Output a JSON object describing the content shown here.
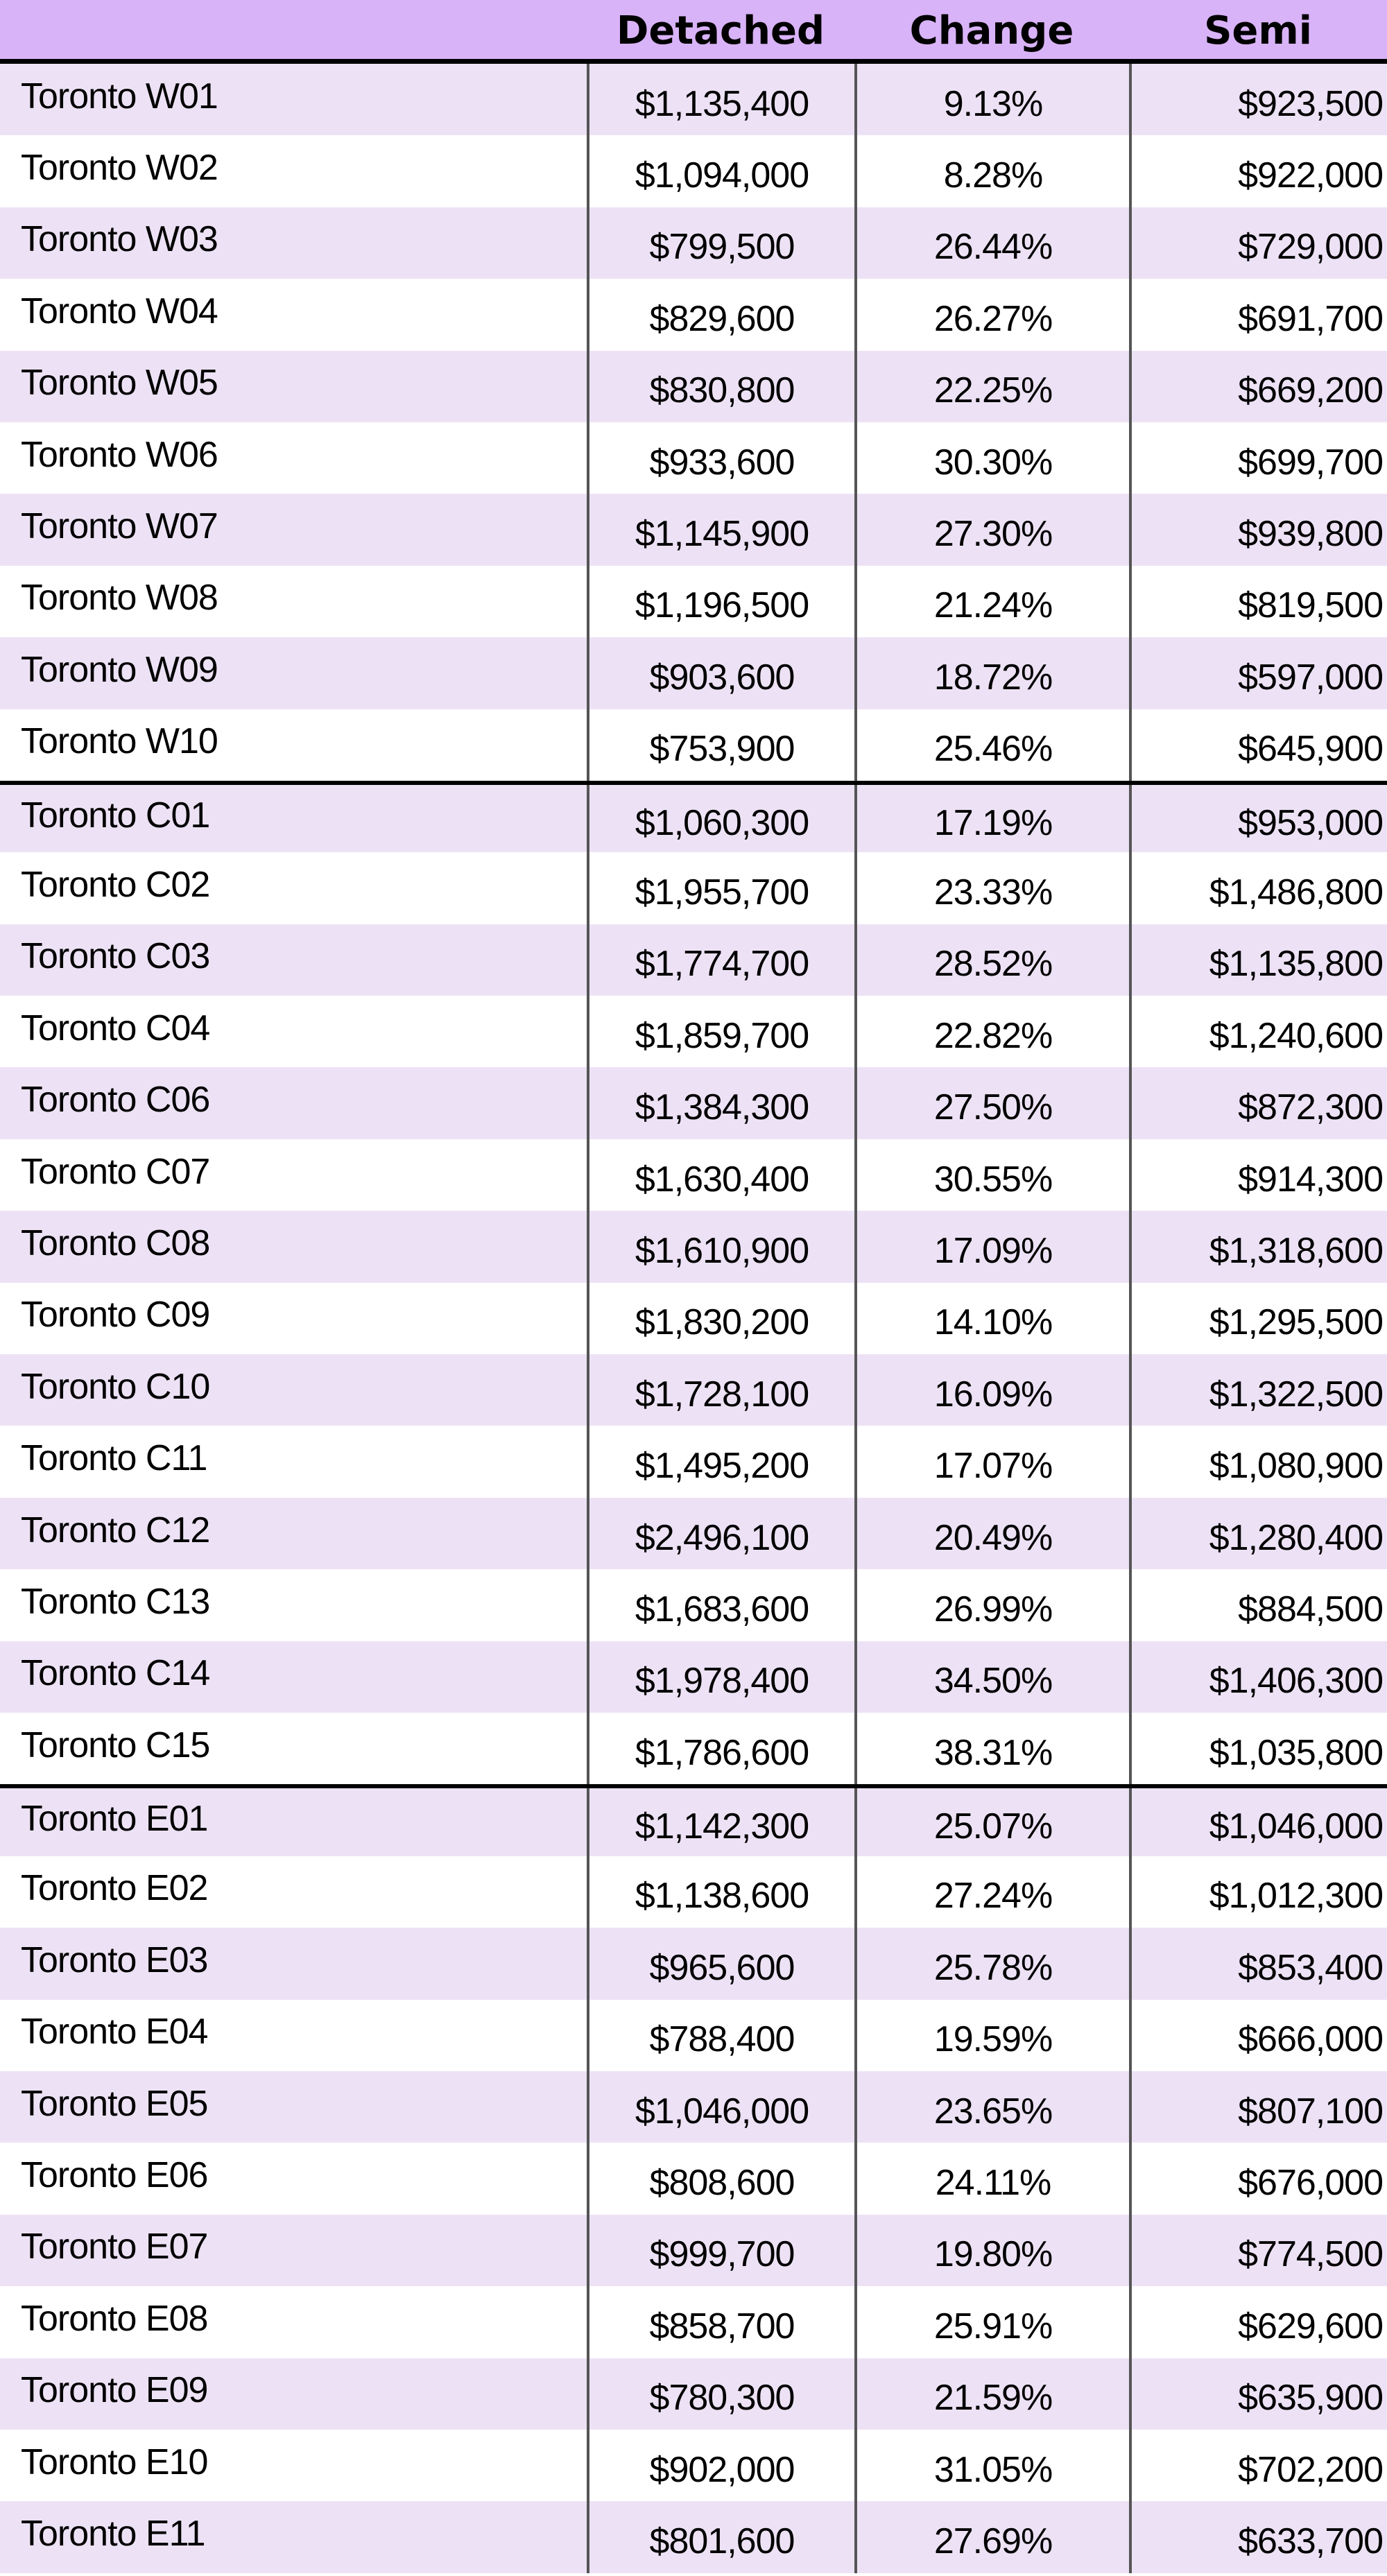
{
  "headers": [
    "",
    "Detached",
    "Change",
    "Semi"
  ],
  "colors": {
    "header_bg": "#d9b3f8",
    "stripe": "#ede2f5"
  },
  "groups": [
    [
      [
        "Toronto W01",
        "$1,135,400",
        "9.13%",
        "$923,500"
      ],
      [
        "Toronto W02",
        "$1,094,000",
        "8.28%",
        "$922,000"
      ],
      [
        "Toronto W03",
        "$799,500",
        "26.44%",
        "$729,000"
      ],
      [
        "Toronto W04",
        "$829,600",
        "26.27%",
        "$691,700"
      ],
      [
        "Toronto W05",
        "$830,800",
        "22.25%",
        "$669,200"
      ],
      [
        "Toronto W06",
        "$933,600",
        "30.30%",
        "$699,700"
      ],
      [
        "Toronto W07",
        "$1,145,900",
        "27.30%",
        "$939,800"
      ],
      [
        "Toronto W08",
        "$1,196,500",
        "21.24%",
        "$819,500"
      ],
      [
        "Toronto W09",
        "$903,600",
        "18.72%",
        "$597,000"
      ],
      [
        "Toronto W10",
        "$753,900",
        "25.46%",
        "$645,900"
      ]
    ],
    [
      [
        "Toronto C01",
        "$1,060,300",
        "17.19%",
        "$953,000"
      ],
      [
        "Toronto C02",
        "$1,955,700",
        "23.33%",
        "$1,486,800"
      ],
      [
        "Toronto C03",
        "$1,774,700",
        "28.52%",
        "$1,135,800"
      ],
      [
        "Toronto C04",
        "$1,859,700",
        "22.82%",
        "$1,240,600"
      ],
      [
        "Toronto C06",
        "$1,384,300",
        "27.50%",
        "$872,300"
      ],
      [
        "Toronto C07",
        "$1,630,400",
        "30.55%",
        "$914,300"
      ],
      [
        "Toronto C08",
        "$1,610,900",
        "17.09%",
        "$1,318,600"
      ],
      [
        "Toronto C09",
        "$1,830,200",
        "14.10%",
        "$1,295,500"
      ],
      [
        "Toronto C10",
        "$1,728,100",
        "16.09%",
        "$1,322,500"
      ],
      [
        "Toronto C11",
        "$1,495,200",
        "17.07%",
        "$1,080,900"
      ],
      [
        "Toronto C12",
        "$2,496,100",
        "20.49%",
        "$1,280,400"
      ],
      [
        "Toronto C13",
        "$1,683,600",
        "26.99%",
        "$884,500"
      ],
      [
        "Toronto C14",
        "$1,978,400",
        "34.50%",
        "$1,406,300"
      ],
      [
        "Toronto C15",
        "$1,786,600",
        "38.31%",
        "$1,035,800"
      ]
    ],
    [
      [
        "Toronto E01",
        "$1,142,300",
        "25.07%",
        "$1,046,000"
      ],
      [
        "Toronto E02",
        "$1,138,600",
        "27.24%",
        "$1,012,300"
      ],
      [
        "Toronto E03",
        "$965,600",
        "25.78%",
        "$853,400"
      ],
      [
        "Toronto E04",
        "$788,400",
        "19.59%",
        "$666,000"
      ],
      [
        "Toronto E05",
        "$1,046,000",
        "23.65%",
        "$807,100"
      ],
      [
        "Toronto E06",
        "$808,600",
        "24.11%",
        "$676,000"
      ],
      [
        "Toronto E07",
        "$999,700",
        "19.80%",
        "$774,500"
      ],
      [
        "Toronto E08",
        "$858,700",
        "25.91%",
        "$629,600"
      ],
      [
        "Toronto E09",
        "$780,300",
        "21.59%",
        "$635,900"
      ],
      [
        "Toronto E10",
        "$902,000",
        "31.05%",
        "$702,200"
      ],
      [
        "Toronto E11",
        "$801,600",
        "27.69%",
        "$633,700"
      ]
    ]
  ]
}
